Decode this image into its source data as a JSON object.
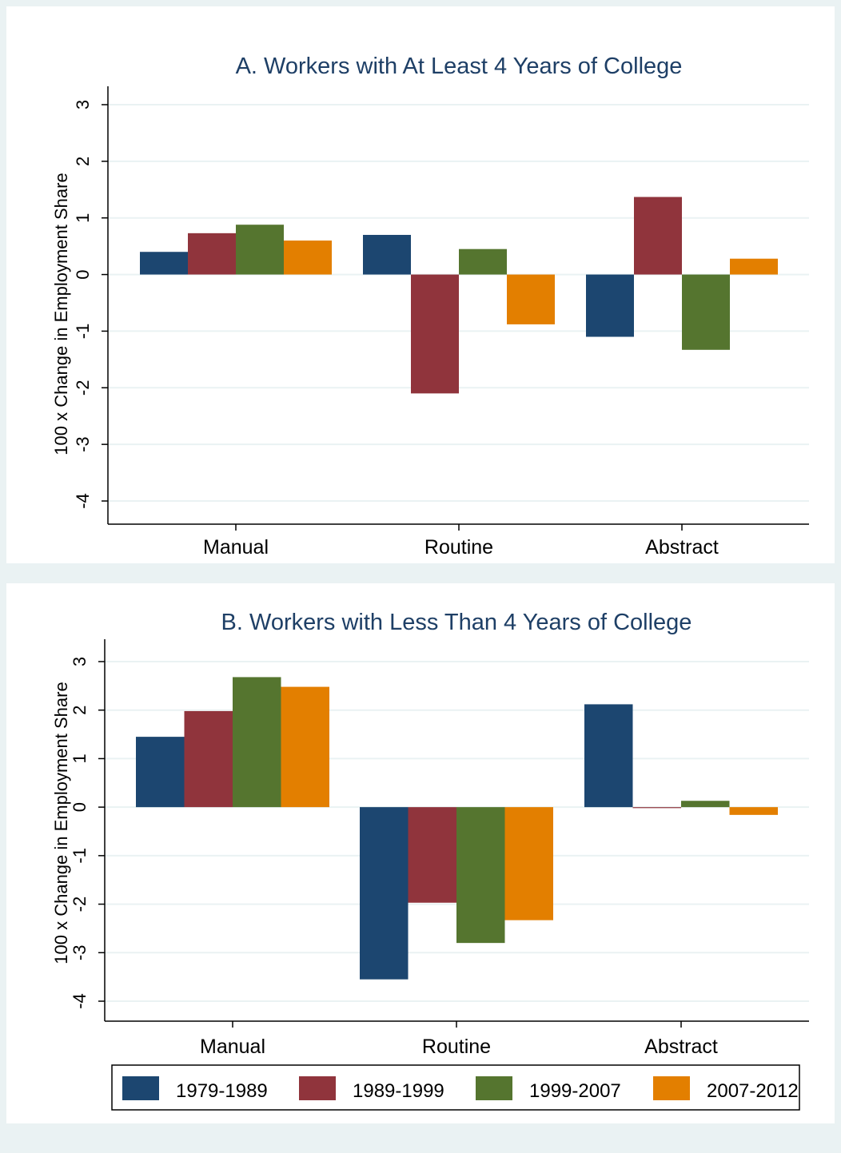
{
  "legend": {
    "position": "bottom",
    "items": [
      {
        "label": "1979-1989",
        "color": "#1c4670"
      },
      {
        "label": "1989-1999",
        "color": "#90343c"
      },
      {
        "label": "1999-2007",
        "color": "#55752f"
      },
      {
        "label": "2007-2012",
        "color": "#e37f00"
      }
    ]
  },
  "chart_data": [
    {
      "type": "bar",
      "title": "A. Workers with At Least 4 Years of College",
      "ylabel": "100 x Change in Employment Share",
      "xlabel": "",
      "ylim": [
        -4.4,
        3.3
      ],
      "yticks": [
        3,
        2,
        1,
        0,
        -1,
        -2,
        -3,
        -4
      ],
      "ytick_labels": [
        "3",
        "2",
        "1",
        "0",
        "-1",
        "-2",
        "-3",
        "-4"
      ],
      "grid": true,
      "categories": [
        "Manual",
        "Routine",
        "Abstract"
      ],
      "series": [
        {
          "name": "1979-1989",
          "color": "#1c4670",
          "values": [
            0.4,
            0.7,
            -1.1
          ]
        },
        {
          "name": "1989-1999",
          "color": "#90343c",
          "values": [
            0.73,
            -2.1,
            1.37
          ]
        },
        {
          "name": "1999-2007",
          "color": "#55752f",
          "values": [
            0.88,
            0.45,
            -1.33
          ]
        },
        {
          "name": "2007-2012",
          "color": "#e37f00",
          "values": [
            0.6,
            -0.88,
            0.28
          ]
        }
      ]
    },
    {
      "type": "bar",
      "title": "B. Workers with Less Than 4 Years of College",
      "ylabel": "100 x Change in Employment Share",
      "xlabel": "",
      "ylim": [
        -4.4,
        3.5
      ],
      "yticks": [
        3,
        2,
        1,
        0,
        -1,
        -2,
        -3,
        -4
      ],
      "ytick_labels": [
        "3",
        "2",
        "1",
        "0",
        "-1",
        "-2",
        "-3",
        "-4"
      ],
      "grid": true,
      "categories": [
        "Manual",
        "Routine",
        "Abstract"
      ],
      "series": [
        {
          "name": "1979-1989",
          "color": "#1c4670",
          "values": [
            1.45,
            -3.55,
            2.12
          ]
        },
        {
          "name": "1989-1999",
          "color": "#90343c",
          "values": [
            1.98,
            -1.97,
            -0.02
          ]
        },
        {
          "name": "1999-2007",
          "color": "#55752f",
          "values": [
            2.68,
            -2.8,
            0.13
          ]
        },
        {
          "name": "2007-2012",
          "color": "#e37f00",
          "values": [
            2.48,
            -2.33,
            -0.16
          ]
        }
      ]
    }
  ]
}
